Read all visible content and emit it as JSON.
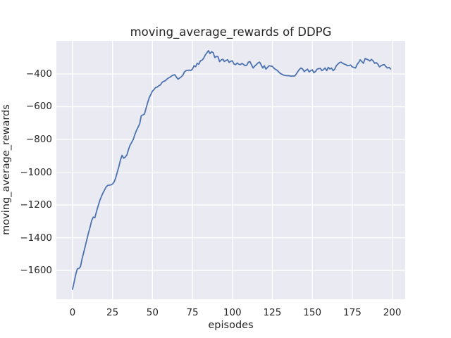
{
  "chart_data": {
    "type": "line",
    "title": "moving_average_rewards of DDPG",
    "xlabel": "episodes",
    "ylabel": "moving_average_rewards",
    "grid": true,
    "legend": "none",
    "plot_bg_color": "#eaeaf2",
    "grid_color": "#ffffff",
    "line_color": "#4c72b0",
    "text_color": "#262626",
    "xlim": [
      -10.1,
      208.1
    ],
    "ylim": [
      -1776,
      -198
    ],
    "xtick_values": [
      0,
      25,
      50,
      75,
      100,
      125,
      150,
      175,
      200
    ],
    "xtick_labels": [
      "0",
      "25",
      "50",
      "75",
      "100",
      "125",
      "150",
      "175",
      "200"
    ],
    "ytick_values": [
      -400,
      -600,
      -800,
      -1000,
      -1200,
      -1400,
      -1600
    ],
    "ytick_labels": [
      "−400",
      "−600",
      "−800",
      "−1000",
      "−1200",
      "−1400",
      "−1600"
    ],
    "series": [
      {
        "name": "moving_average_rewards",
        "x_start": 0,
        "x_step": 1,
        "y": [
          -1715,
          -1672,
          -1625,
          -1590,
          -1588,
          -1576,
          -1528,
          -1490,
          -1450,
          -1410,
          -1370,
          -1335,
          -1295,
          -1274,
          -1278,
          -1240,
          -1207,
          -1175,
          -1150,
          -1128,
          -1110,
          -1090,
          -1081,
          -1079,
          -1078,
          -1072,
          -1060,
          -1035,
          -1000,
          -965,
          -925,
          -897,
          -915,
          -908,
          -895,
          -862,
          -835,
          -818,
          -800,
          -770,
          -745,
          -725,
          -705,
          -655,
          -650,
          -645,
          -610,
          -575,
          -545,
          -525,
          -505,
          -495,
          -483,
          -480,
          -472,
          -467,
          -452,
          -445,
          -442,
          -432,
          -425,
          -420,
          -412,
          -407,
          -405,
          -420,
          -432,
          -425,
          -418,
          -408,
          -388,
          -380,
          -378,
          -377,
          -379,
          -371,
          -350,
          -356,
          -335,
          -341,
          -320,
          -316,
          -305,
          -285,
          -272,
          -258,
          -276,
          -264,
          -270,
          -300,
          -293,
          -295,
          -325,
          -315,
          -310,
          -324,
          -318,
          -313,
          -330,
          -322,
          -320,
          -340,
          -343,
          -333,
          -341,
          -343,
          -336,
          -342,
          -350,
          -347,
          -328,
          -325,
          -345,
          -364,
          -352,
          -343,
          -333,
          -328,
          -345,
          -364,
          -350,
          -371,
          -360,
          -350,
          -352,
          -354,
          -365,
          -372,
          -378,
          -388,
          -397,
          -402,
          -407,
          -409,
          -411,
          -410,
          -412,
          -414,
          -412,
          -413,
          -400,
          -385,
          -371,
          -364,
          -371,
          -386,
          -378,
          -371,
          -388,
          -380,
          -375,
          -393,
          -385,
          -371,
          -368,
          -366,
          -380,
          -373,
          -364,
          -380,
          -360,
          -370,
          -364,
          -380,
          -371,
          -350,
          -340,
          -331,
          -328,
          -335,
          -340,
          -343,
          -350,
          -348,
          -346,
          -357,
          -360,
          -364,
          -343,
          -330,
          -314,
          -325,
          -335,
          -306,
          -310,
          -314,
          -321,
          -311,
          -320,
          -335,
          -331,
          -340,
          -357,
          -350,
          -345,
          -343,
          -355,
          -364,
          -360,
          -370
        ]
      }
    ]
  }
}
